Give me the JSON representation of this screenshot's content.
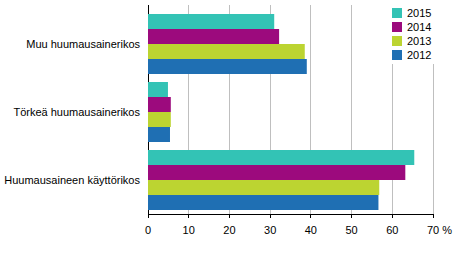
{
  "chart_data": {
    "type": "bar",
    "orientation": "horizontal",
    "categories": [
      "Muu huumausainerikos",
      "Törkeä huumausainerikos",
      "Huumausaineen käyttörikos"
    ],
    "series": [
      {
        "name": "2015",
        "color": "#33c3b5",
        "values": [
          31,
          4.9,
          65.4
        ]
      },
      {
        "name": "2014",
        "color": "#9c0a7d",
        "values": [
          32.2,
          5.6,
          63.2
        ]
      },
      {
        "name": "2013",
        "color": "#bcd431",
        "values": [
          38.5,
          5.6,
          56.8
        ]
      },
      {
        "name": "2012",
        "color": "#1f6fb3",
        "values": [
          39,
          5.4,
          56.6
        ]
      }
    ],
    "xlim": [
      0,
      70
    ],
    "xticks": [
      0,
      10,
      20,
      30,
      40,
      50,
      60,
      {
        "value": 70,
        "label": "70 %"
      }
    ],
    "grid": true,
    "legend": "upper right"
  }
}
